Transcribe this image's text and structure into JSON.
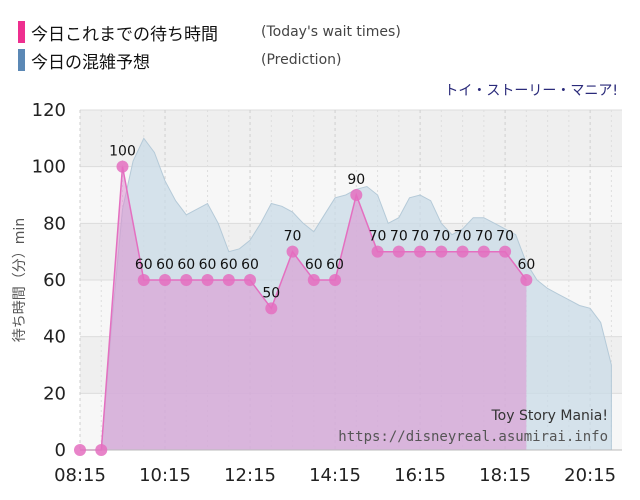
{
  "legend": [
    {
      "label": "今日これまでの待ち時間",
      "sub": "(Today's wait times)",
      "color": "#ee2f8f"
    },
    {
      "label": "今日の混雑予想",
      "sub": "(Prediction)",
      "color": "#5b88b5"
    }
  ],
  "attraction_jp": "トイ・ストーリー・マニア!",
  "watermark": {
    "title": "Toy Story Mania!",
    "url": "https://disneyreal.asumirai.info"
  },
  "chart_data": {
    "type": "area",
    "ylabel": "待ち時間（分）min",
    "xlabel": "",
    "x_range": [
      "08:15",
      "21:00"
    ],
    "ylim": [
      0,
      120
    ],
    "y_ticks": [
      0,
      20,
      40,
      60,
      80,
      100,
      120
    ],
    "x_ticks": [
      "08:15",
      "10:15",
      "12:15",
      "14:15",
      "16:15",
      "18:15",
      "20:15"
    ],
    "grid": true,
    "series": [
      {
        "name": "今日これまでの待ち時間",
        "color": "#e46fc0",
        "x": [
          "08:15",
          "08:45",
          "09:15",
          "09:45",
          "10:15",
          "10:45",
          "11:15",
          "11:45",
          "12:15",
          "12:45",
          "13:15",
          "13:45",
          "14:15",
          "14:45",
          "15:15",
          "15:45",
          "16:15",
          "16:45",
          "17:15",
          "17:45",
          "18:15",
          "18:45"
        ],
        "values": [
          0,
          0,
          100,
          60,
          60,
          60,
          60,
          60,
          60,
          50,
          70,
          60,
          60,
          90,
          70,
          70,
          70,
          70,
          70,
          70,
          70,
          60
        ]
      },
      {
        "name": "今日の混雑予想",
        "color": "#9fbdd1",
        "x": [
          "08:15",
          "08:45",
          "09:00",
          "09:15",
          "09:30",
          "09:45",
          "10:00",
          "10:15",
          "10:30",
          "10:45",
          "11:00",
          "11:15",
          "11:30",
          "11:45",
          "12:00",
          "12:15",
          "12:30",
          "12:45",
          "13:00",
          "13:15",
          "13:30",
          "13:45",
          "14:00",
          "14:15",
          "14:30",
          "14:45",
          "15:00",
          "15:15",
          "15:30",
          "15:45",
          "16:00",
          "16:15",
          "16:30",
          "16:45",
          "17:00",
          "17:15",
          "17:30",
          "17:45",
          "18:00",
          "18:15",
          "18:30",
          "18:45",
          "19:00",
          "19:15",
          "19:30",
          "19:45",
          "20:00",
          "20:15",
          "20:30",
          "20:45"
        ],
        "values": [
          0,
          0,
          45,
          85,
          102,
          110,
          105,
          95,
          88,
          83,
          85,
          87,
          80,
          70,
          71,
          74,
          80,
          87,
          86,
          84,
          80,
          77,
          83,
          89,
          90,
          92,
          93,
          90,
          80,
          82,
          89,
          90,
          88,
          80,
          76,
          78,
          82,
          82,
          80,
          78,
          76,
          66,
          60,
          57,
          55,
          53,
          51,
          50,
          45,
          30
        ]
      }
    ]
  }
}
